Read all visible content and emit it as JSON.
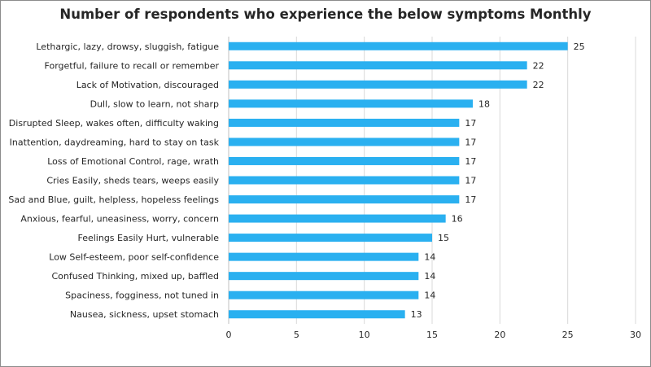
{
  "chart_data": {
    "type": "bar",
    "orientation": "horizontal",
    "title": "Number of respondents who experience the below symptoms Monthly",
    "xlabel": "",
    "ylabel": "",
    "xlim": [
      0,
      30
    ],
    "x_ticks": [
      0,
      5,
      10,
      15,
      20,
      25,
      30
    ],
    "grid": "vertical",
    "bar_color": "#2ab0f0",
    "categories": [
      "Lethargic, lazy, drowsy, sluggish, fatigue",
      "Forgetful, failure to recall or remember",
      "Lack of Motivation, discouraged",
      "Dull, slow to learn, not sharp",
      "Disrupted Sleep, wakes often, difficulty waking",
      "Inattention, daydreaming, hard to stay on task",
      "Loss of Emotional Control, rage, wrath",
      "Cries Easily, sheds tears, weeps easily",
      "Sad and Blue, guilt, helpless, hopeless feelings",
      "Anxious, fearful, uneasiness, worry, concern",
      "Feelings Easily Hurt, vulnerable",
      "Low Self-esteem, poor self-confidence",
      "Confused Thinking, mixed up, baffled",
      "Spaciness, fogginess, not tuned in",
      "Nausea, sickness, upset stomach"
    ],
    "values": [
      25,
      22,
      22,
      18,
      17,
      17,
      17,
      17,
      17,
      16,
      15,
      14,
      14,
      14,
      13
    ]
  }
}
